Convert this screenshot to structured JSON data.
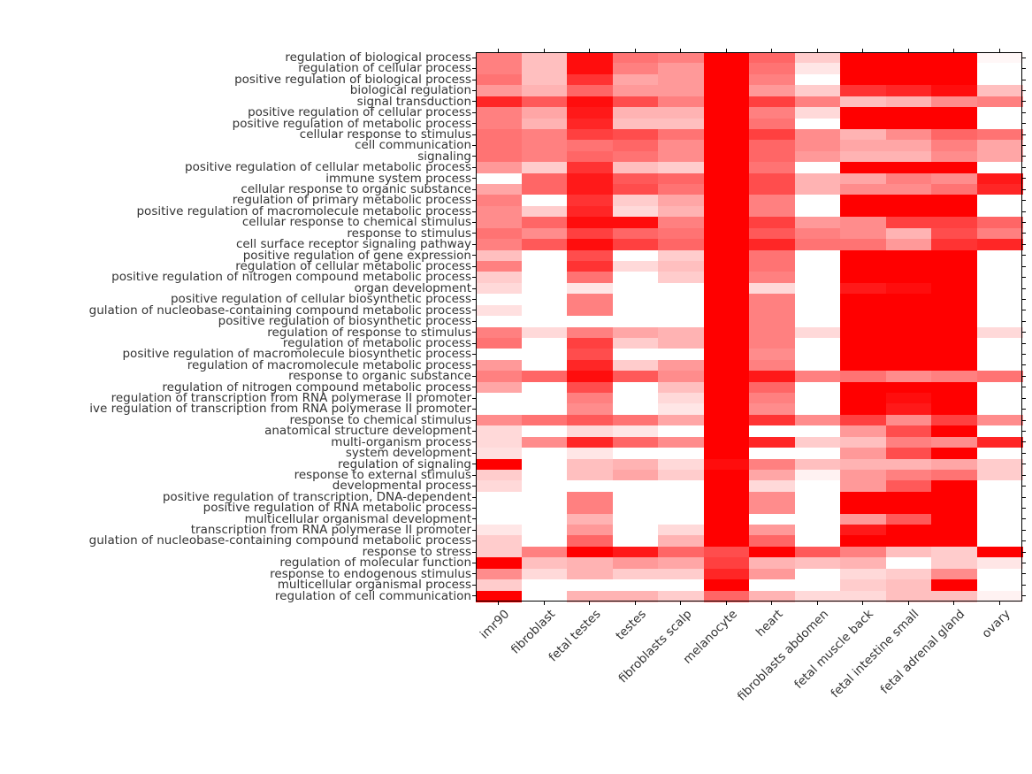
{
  "chart_data": {
    "type": "heatmap",
    "title": "",
    "legend": "none",
    "grid": false,
    "colors": {
      "heat_low": "#ffffff",
      "heat_high": "#ff0000",
      "text": "#333333",
      "axis": "#000000"
    },
    "scale": {
      "min": 0,
      "max": 1
    },
    "columns": [
      "imr90",
      "fibroblast",
      "fetal testes",
      "testes",
      "fibroblasts scalp",
      "melanocyte",
      "heart",
      "fibroblasts abdomen",
      "fetal muscle back",
      "fetal intestine small",
      "fetal adrenal gland",
      "ovary"
    ],
    "rows": [
      "regulation of biological process",
      "regulation of cellular process",
      "positive regulation of biological process",
      "biological regulation",
      "signal transduction",
      "positive regulation of cellular process",
      "positive regulation of metabolic process",
      "cellular response to stimulus",
      "cell communication",
      "signaling",
      "positive regulation of cellular metabolic process",
      "immune system process",
      "cellular response to organic substance",
      "regulation of primary metabolic process",
      "positive regulation of macromolecule metabolic process",
      "cellular response to chemical stimulus",
      "response to stimulus",
      "cell surface receptor signaling pathway",
      "positive regulation of gene expression",
      "regulation of cellular metabolic process",
      "positive regulation of nitrogen compound metabolic process",
      "organ development",
      "positive regulation of cellular biosynthetic process",
      "gulation of nucleobase-containing compound metabolic process",
      "positive regulation of biosynthetic process",
      "regulation of response to stimulus",
      "regulation of metabolic process",
      "positive regulation of macromolecule biosynthetic process",
      "regulation of macromolecule metabolic process",
      "response to organic substance",
      "regulation of nitrogen compound metabolic process",
      "regulation of transcription from RNA polymerase II promoter",
      "ive regulation of transcription from RNA polymerase II promoter",
      "response to chemical stimulus",
      "anatomical structure development",
      "multi-organism process",
      "system development",
      "regulation of signaling",
      "response to external stimulus",
      "developmental process",
      "positive regulation of transcription, DNA-dependent",
      "positive regulation of RNA metabolic process",
      "multicellular organismal development",
      "transcription from RNA polymerase II promoter",
      "gulation of nucleobase-containing compound metabolic process",
      "response to stress",
      "regulation of molecular function",
      "response to endogenous stimulus",
      "multicellular organismal process",
      "regulation of cell communication"
    ],
    "values": [
      [
        0.5,
        0.25,
        0.95,
        0.55,
        0.5,
        1.0,
        0.6,
        0.2,
        1.0,
        1.0,
        1.0,
        0.03
      ],
      [
        0.5,
        0.25,
        0.95,
        0.5,
        0.4,
        1.0,
        0.55,
        0.1,
        1.0,
        1.0,
        1.0,
        0.0
      ],
      [
        0.55,
        0.25,
        0.8,
        0.35,
        0.4,
        1.0,
        0.5,
        0.0,
        1.0,
        1.0,
        1.0,
        0.0
      ],
      [
        0.4,
        0.3,
        0.6,
        0.4,
        0.4,
        1.0,
        0.4,
        0.2,
        0.8,
        0.85,
        0.95,
        0.25
      ],
      [
        0.85,
        0.65,
        0.95,
        0.7,
        0.5,
        1.0,
        0.75,
        0.5,
        0.25,
        0.3,
        0.45,
        0.5
      ],
      [
        0.5,
        0.35,
        0.9,
        0.3,
        0.3,
        1.0,
        0.5,
        0.15,
        1.0,
        1.0,
        1.0,
        0.0
      ],
      [
        0.5,
        0.3,
        0.85,
        0.25,
        0.25,
        1.0,
        0.55,
        0.0,
        1.0,
        1.0,
        1.0,
        0.0
      ],
      [
        0.55,
        0.5,
        0.75,
        0.7,
        0.55,
        1.0,
        0.75,
        0.45,
        0.3,
        0.45,
        0.6,
        0.55
      ],
      [
        0.55,
        0.5,
        0.55,
        0.6,
        0.45,
        1.0,
        0.6,
        0.45,
        0.35,
        0.35,
        0.5,
        0.35
      ],
      [
        0.55,
        0.5,
        0.6,
        0.55,
        0.45,
        1.0,
        0.6,
        0.4,
        0.3,
        0.3,
        0.45,
        0.35
      ],
      [
        0.4,
        0.2,
        0.8,
        0.25,
        0.2,
        1.0,
        0.55,
        0.0,
        1.0,
        1.0,
        1.0,
        0.0
      ],
      [
        0.0,
        0.6,
        0.9,
        0.65,
        0.6,
        1.0,
        0.7,
        0.3,
        0.35,
        0.5,
        0.45,
        0.9
      ],
      [
        0.35,
        0.6,
        0.9,
        0.7,
        0.55,
        1.0,
        0.7,
        0.3,
        0.45,
        0.45,
        0.55,
        0.85
      ],
      [
        0.5,
        0.0,
        0.8,
        0.2,
        0.35,
        1.0,
        0.5,
        0.0,
        1.0,
        1.0,
        1.0,
        0.0
      ],
      [
        0.45,
        0.2,
        0.85,
        0.15,
        0.3,
        1.0,
        0.5,
        0.0,
        1.0,
        1.0,
        1.0,
        0.0
      ],
      [
        0.45,
        0.6,
        0.95,
        0.95,
        0.5,
        1.0,
        0.75,
        0.4,
        0.45,
        0.75,
        0.75,
        0.6
      ],
      [
        0.55,
        0.45,
        0.75,
        0.6,
        0.55,
        1.0,
        0.65,
        0.5,
        0.45,
        0.3,
        0.7,
        0.5
      ],
      [
        0.5,
        0.65,
        0.95,
        0.75,
        0.6,
        1.0,
        0.85,
        0.55,
        0.55,
        0.4,
        0.8,
        0.85
      ],
      [
        0.25,
        0.0,
        0.7,
        0.0,
        0.2,
        1.0,
        0.55,
        0.0,
        1.0,
        1.0,
        1.0,
        0.0
      ],
      [
        0.5,
        0.0,
        0.8,
        0.15,
        0.25,
        1.0,
        0.55,
        0.0,
        1.0,
        1.0,
        1.0,
        0.0
      ],
      [
        0.2,
        0.0,
        0.55,
        0.0,
        0.2,
        1.0,
        0.5,
        0.0,
        1.0,
        1.0,
        1.0,
        0.0
      ],
      [
        0.15,
        0.0,
        0.1,
        0.0,
        0.0,
        1.0,
        0.15,
        0.0,
        0.9,
        0.95,
        1.0,
        0.0
      ],
      [
        0.0,
        0.0,
        0.5,
        0.0,
        0.0,
        1.0,
        0.5,
        0.0,
        1.0,
        1.0,
        1.0,
        0.0
      ],
      [
        0.12,
        0.0,
        0.5,
        0.0,
        0.0,
        1.0,
        0.5,
        0.0,
        1.0,
        1.0,
        1.0,
        0.0
      ],
      [
        0.0,
        0.0,
        0.0,
        0.0,
        0.0,
        1.0,
        0.5,
        0.0,
        1.0,
        1.0,
        1.0,
        0.0
      ],
      [
        0.5,
        0.15,
        0.5,
        0.35,
        0.3,
        1.0,
        0.5,
        0.15,
        1.0,
        1.0,
        1.0,
        0.15
      ],
      [
        0.55,
        0.0,
        0.75,
        0.2,
        0.3,
        1.0,
        0.5,
        0.0,
        1.0,
        1.0,
        1.0,
        0.0
      ],
      [
        0.0,
        0.0,
        0.7,
        0.0,
        0.0,
        1.0,
        0.45,
        0.0,
        1.0,
        1.0,
        1.0,
        0.0
      ],
      [
        0.4,
        0.0,
        0.85,
        0.2,
        0.4,
        1.0,
        0.5,
        0.0,
        1.0,
        1.0,
        1.0,
        0.0
      ],
      [
        0.5,
        0.6,
        0.95,
        0.65,
        0.45,
        1.0,
        0.9,
        0.5,
        0.55,
        0.45,
        0.5,
        0.55
      ],
      [
        0.35,
        0.0,
        0.7,
        0.0,
        0.25,
        1.0,
        0.6,
        0.0,
        1.0,
        1.0,
        1.0,
        0.0
      ],
      [
        0.0,
        0.0,
        0.5,
        0.0,
        0.15,
        1.0,
        0.5,
        0.0,
        1.0,
        0.95,
        1.0,
        0.0
      ],
      [
        0.0,
        0.0,
        0.45,
        0.0,
        0.1,
        1.0,
        0.45,
        0.0,
        1.0,
        0.9,
        1.0,
        0.0
      ],
      [
        0.45,
        0.55,
        0.65,
        0.55,
        0.35,
        1.0,
        0.8,
        0.45,
        0.75,
        0.45,
        0.75,
        0.45
      ],
      [
        0.15,
        0.0,
        0.15,
        0.1,
        0.0,
        1.0,
        0.0,
        0.0,
        0.4,
        0.7,
        1.0,
        0.0
      ],
      [
        0.15,
        0.45,
        0.85,
        0.6,
        0.45,
        1.0,
        0.85,
        0.2,
        0.25,
        0.5,
        0.45,
        0.85
      ],
      [
        0.12,
        0.0,
        0.1,
        0.0,
        0.0,
        1.0,
        0.0,
        0.0,
        0.4,
        0.7,
        1.0,
        0.0
      ],
      [
        1.0,
        0.0,
        0.25,
        0.3,
        0.15,
        0.95,
        0.5,
        0.25,
        0.3,
        0.3,
        0.35,
        0.2
      ],
      [
        0.2,
        0.0,
        0.25,
        0.35,
        0.2,
        1.0,
        0.35,
        0.05,
        0.4,
        0.5,
        0.55,
        0.2
      ],
      [
        0.15,
        0.0,
        0.0,
        0.0,
        0.0,
        1.0,
        0.15,
        0.0,
        0.4,
        0.65,
        1.0,
        0.0
      ],
      [
        0.0,
        0.0,
        0.5,
        0.0,
        0.0,
        1.0,
        0.45,
        0.0,
        1.0,
        1.0,
        1.0,
        0.0
      ],
      [
        0.0,
        0.0,
        0.5,
        0.0,
        0.0,
        1.0,
        0.45,
        0.0,
        1.0,
        1.0,
        1.0,
        0.0
      ],
      [
        0.0,
        0.0,
        0.3,
        0.0,
        0.0,
        1.0,
        0.0,
        0.0,
        0.4,
        0.65,
        1.0,
        0.0
      ],
      [
        0.1,
        0.0,
        0.4,
        0.0,
        0.15,
        1.0,
        0.4,
        0.0,
        0.9,
        1.0,
        1.0,
        0.0
      ],
      [
        0.2,
        0.0,
        0.6,
        0.0,
        0.3,
        1.0,
        0.6,
        0.0,
        1.0,
        1.0,
        1.0,
        0.0
      ],
      [
        0.2,
        0.5,
        1.0,
        0.9,
        0.6,
        0.7,
        1.0,
        0.65,
        0.5,
        0.25,
        0.2,
        1.0
      ],
      [
        1.0,
        0.25,
        0.3,
        0.4,
        0.35,
        0.75,
        0.3,
        0.25,
        0.3,
        0.0,
        0.2,
        0.1
      ],
      [
        0.45,
        0.15,
        0.3,
        0.2,
        0.2,
        0.85,
        0.4,
        0.0,
        0.15,
        0.2,
        0.45,
        0.0
      ],
      [
        0.2,
        0.0,
        0.0,
        0.0,
        0.0,
        1.0,
        0.0,
        0.0,
        0.2,
        0.25,
        1.0,
        0.0
      ],
      [
        1.0,
        0.0,
        0.3,
        0.3,
        0.2,
        0.6,
        0.3,
        0.15,
        0.15,
        0.25,
        0.25,
        0.05
      ]
    ]
  }
}
